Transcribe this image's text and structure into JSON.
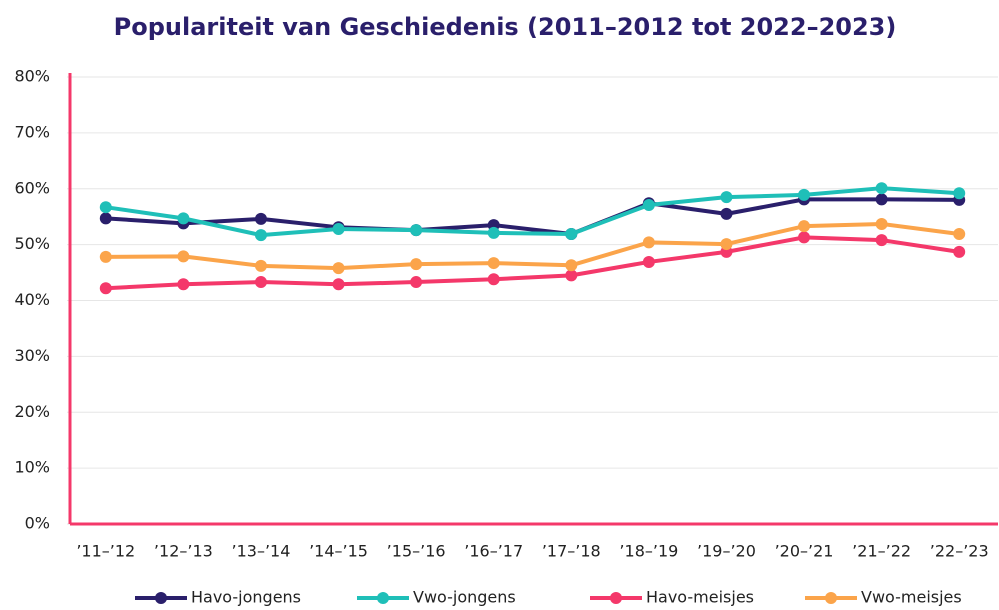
{
  "chart_data": {
    "type": "line",
    "title": "Populariteit van Geschiedenis (2011–2012 tot 2022–2023)",
    "categories": [
      "’11–’12",
      "’12–’13",
      "’13–’14",
      "’14–’15",
      "’15–’16",
      "’16–’17",
      "’17–’18",
      "’18–’19",
      "’19–’20",
      "’20–’21",
      "’21–’22",
      "’22–’23"
    ],
    "series": [
      {
        "name": "Havo-jongens",
        "color": "#2a1f6b",
        "values": [
          54.7,
          53.8,
          54.6,
          53.1,
          52.6,
          53.5,
          51.9,
          57.4,
          55.5,
          58.1,
          58.1,
          58.0
        ]
      },
      {
        "name": "Vwo-jongens",
        "color": "#1fbfb8",
        "values": [
          56.7,
          54.7,
          51.7,
          52.8,
          52.6,
          52.1,
          51.9,
          57.1,
          58.5,
          58.9,
          60.1,
          59.2
        ]
      },
      {
        "name": "Havo-meisjes",
        "color": "#f4386a",
        "values": [
          42.2,
          42.9,
          43.3,
          42.9,
          43.3,
          43.8,
          44.5,
          46.9,
          48.7,
          51.3,
          50.8,
          48.7
        ]
      },
      {
        "name": "Vwo-meisjes",
        "color": "#fba44a",
        "values": [
          47.8,
          47.9,
          46.2,
          45.8,
          46.5,
          46.7,
          46.3,
          50.4,
          50.1,
          53.3,
          53.7,
          51.9
        ]
      }
    ],
    "ylim": [
      0,
      80
    ],
    "yticks": [
      {
        "value": 0,
        "label": "0%"
      },
      {
        "value": 10,
        "label": "10%"
      },
      {
        "value": 20,
        "label": "20%"
      },
      {
        "value": 30,
        "label": "30%"
      },
      {
        "value": 40,
        "label": "40%"
      },
      {
        "value": 50,
        "label": "50%"
      },
      {
        "value": 60,
        "label": "60%"
      },
      {
        "value": 70,
        "label": "70%"
      },
      {
        "value": 80,
        "label": "80%"
      }
    ],
    "grid": true,
    "legend": "bottom"
  }
}
